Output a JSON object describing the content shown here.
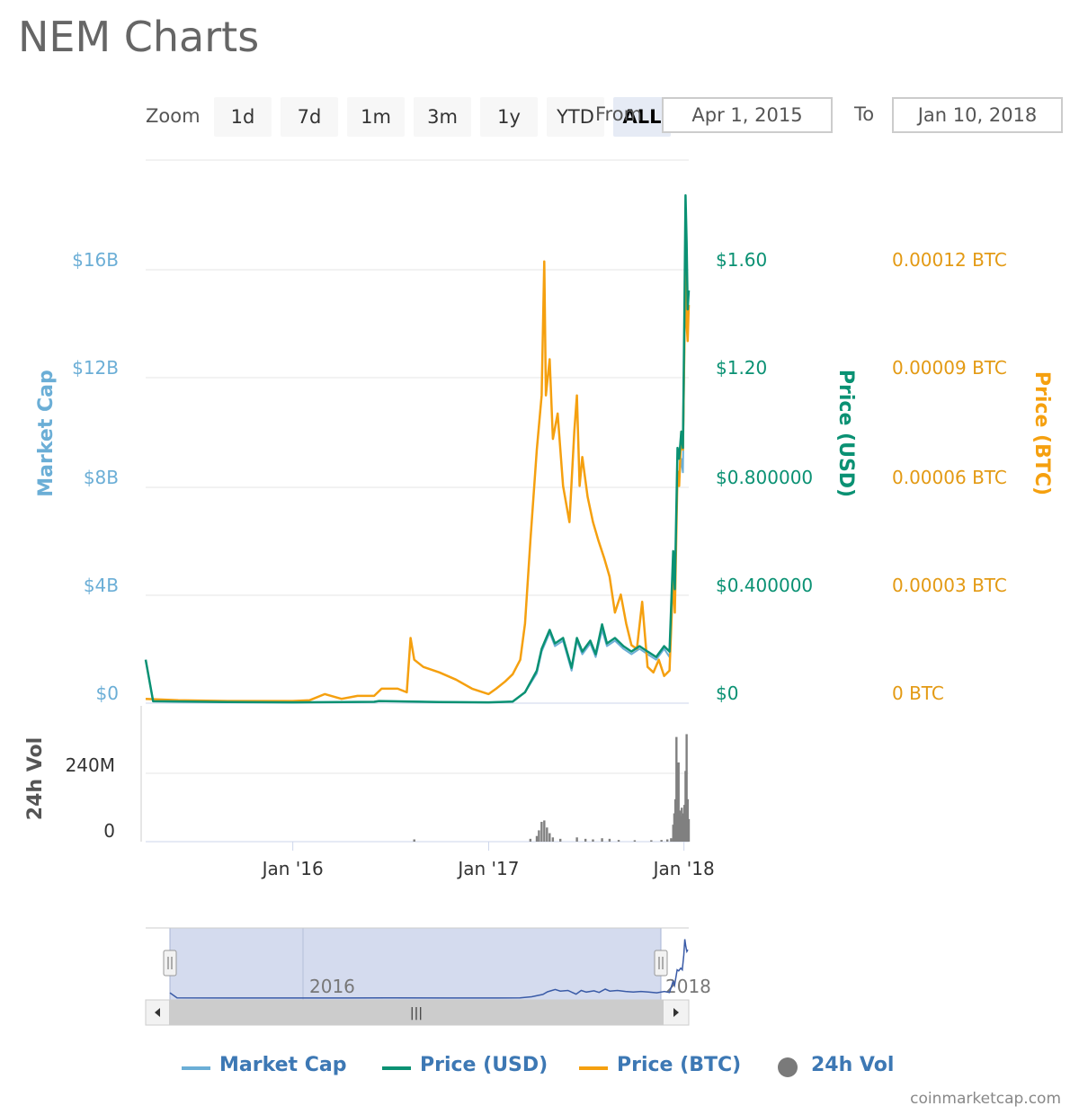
{
  "title": "NEM Charts",
  "zoom": {
    "label": "Zoom",
    "buttons": [
      "1d",
      "7d",
      "1m",
      "3m",
      "1y",
      "YTD",
      "ALL"
    ],
    "active": "ALL"
  },
  "range": {
    "from_label": "From",
    "from_value": "Apr 1, 2015",
    "to_label": "To",
    "to_value": "Jan 10, 2018"
  },
  "colors": {
    "market_cap": "#6baed6",
    "price_usd": "#0a9173",
    "price_btc": "#f5a00f",
    "volume": "#808080",
    "navigator_fill": "#d4dbee",
    "navigator_line": "#3a5ba7"
  },
  "chart_data": {
    "type": "line",
    "x_range": [
      "2015-04-01",
      "2018-01-10"
    ],
    "x_ticks": [
      "Jan '16",
      "Jan '17",
      "Jan '18"
    ],
    "y_axes": {
      "market_cap": {
        "title": "Market Cap",
        "ticks": [
          "$0",
          "$4B",
          "$8B",
          "$12B",
          "$16B"
        ],
        "range": [
          0,
          20000000000
        ]
      },
      "price_usd": {
        "title": "Price (USD)",
        "ticks": [
          "$0",
          "$0.400000",
          "$0.800000",
          "$1.20",
          "$1.60"
        ],
        "range": [
          0,
          2.0
        ]
      },
      "price_btc": {
        "title": "Price (BTC)",
        "ticks": [
          "0 BTC",
          "0.00003 BTC",
          "0.00006 BTC",
          "0.00009 BTC",
          "0.00012 BTC"
        ],
        "range": [
          0,
          0.00015
        ]
      },
      "volume": {
        "title": "24h Vol",
        "ticks": [
          "0",
          "240M"
        ],
        "range": [
          0,
          480000000
        ]
      }
    },
    "series": [
      {
        "name": "Market Cap",
        "points": [
          [
            "2015-04-01",
            1600000000
          ],
          [
            "2015-04-15",
            70000000
          ],
          [
            "2015-09-01",
            40000000
          ],
          [
            "2016-01-01",
            30000000
          ],
          [
            "2016-06-01",
            50000000
          ],
          [
            "2016-06-10",
            80000000
          ],
          [
            "2016-10-01",
            40000000
          ],
          [
            "2017-01-01",
            30000000
          ],
          [
            "2017-02-15",
            60000000
          ],
          [
            "2017-03-10",
            400000000
          ],
          [
            "2017-04-01",
            1100000000
          ],
          [
            "2017-04-10",
            1900000000
          ],
          [
            "2017-04-25",
            2600000000
          ],
          [
            "2017-05-05",
            2100000000
          ],
          [
            "2017-05-20",
            2300000000
          ],
          [
            "2017-06-05",
            1200000000
          ],
          [
            "2017-06-15",
            2300000000
          ],
          [
            "2017-06-25",
            1800000000
          ],
          [
            "2017-07-10",
            2200000000
          ],
          [
            "2017-07-20",
            1700000000
          ],
          [
            "2017-08-01",
            2700000000
          ],
          [
            "2017-08-10",
            2100000000
          ],
          [
            "2017-08-25",
            2300000000
          ],
          [
            "2017-09-10",
            2000000000
          ],
          [
            "2017-09-25",
            1800000000
          ],
          [
            "2017-10-10",
            2000000000
          ],
          [
            "2017-10-25",
            1800000000
          ],
          [
            "2017-11-10",
            1600000000
          ],
          [
            "2017-11-25",
            2000000000
          ],
          [
            "2017-12-05",
            1700000000
          ],
          [
            "2017-12-12",
            5000000000
          ],
          [
            "2017-12-15",
            3800000000
          ],
          [
            "2017-12-20",
            8500000000
          ],
          [
            "2017-12-23",
            8200000000
          ],
          [
            "2017-12-27",
            9000000000
          ],
          [
            "2017-12-30",
            8500000000
          ],
          [
            "2018-01-02",
            13000000000
          ],
          [
            "2018-01-04",
            17700000000
          ],
          [
            "2018-01-06",
            15600000000
          ],
          [
            "2018-01-08",
            14000000000
          ],
          [
            "2018-01-10",
            14500000000
          ]
        ]
      },
      {
        "name": "Price (USD)",
        "points": [
          [
            "2015-04-01",
            0.16
          ],
          [
            "2015-04-15",
            0.007
          ],
          [
            "2015-09-01",
            0.004
          ],
          [
            "2016-01-01",
            0.003
          ],
          [
            "2016-06-01",
            0.005
          ],
          [
            "2016-06-10",
            0.008
          ],
          [
            "2016-10-01",
            0.004
          ],
          [
            "2017-01-01",
            0.003
          ],
          [
            "2017-02-15",
            0.006
          ],
          [
            "2017-03-10",
            0.04
          ],
          [
            "2017-04-01",
            0.12
          ],
          [
            "2017-04-10",
            0.2
          ],
          [
            "2017-04-25",
            0.27
          ],
          [
            "2017-05-05",
            0.22
          ],
          [
            "2017-05-20",
            0.24
          ],
          [
            "2017-06-05",
            0.13
          ],
          [
            "2017-06-15",
            0.24
          ],
          [
            "2017-06-25",
            0.19
          ],
          [
            "2017-07-10",
            0.23
          ],
          [
            "2017-07-20",
            0.18
          ],
          [
            "2017-08-01",
            0.29
          ],
          [
            "2017-08-10",
            0.22
          ],
          [
            "2017-08-25",
            0.24
          ],
          [
            "2017-09-10",
            0.21
          ],
          [
            "2017-09-25",
            0.19
          ],
          [
            "2017-10-10",
            0.21
          ],
          [
            "2017-10-25",
            0.19
          ],
          [
            "2017-11-10",
            0.17
          ],
          [
            "2017-11-25",
            0.21
          ],
          [
            "2017-12-05",
            0.19
          ],
          [
            "2017-12-12",
            0.56
          ],
          [
            "2017-12-15",
            0.42
          ],
          [
            "2017-12-20",
            0.94
          ],
          [
            "2017-12-23",
            0.9
          ],
          [
            "2017-12-27",
            1.0
          ],
          [
            "2017-12-30",
            0.94
          ],
          [
            "2018-01-02",
            1.45
          ],
          [
            "2018-01-04",
            1.87
          ],
          [
            "2018-01-06",
            1.7
          ],
          [
            "2018-01-08",
            1.45
          ],
          [
            "2018-01-10",
            1.52
          ]
        ]
      },
      {
        "name": "Price (BTC)",
        "points": [
          [
            "2015-04-01",
            1.2e-06
          ],
          [
            "2015-06-01",
            8e-07
          ],
          [
            "2015-09-01",
            6e-07
          ],
          [
            "2016-01-01",
            6e-07
          ],
          [
            "2016-02-01",
            8e-07
          ],
          [
            "2016-03-01",
            2.5e-06
          ],
          [
            "2016-04-01",
            1.2e-06
          ],
          [
            "2016-05-01",
            2e-06
          ],
          [
            "2016-06-01",
            2e-06
          ],
          [
            "2016-06-15",
            4e-06
          ],
          [
            "2016-07-15",
            4e-06
          ],
          [
            "2016-08-01",
            3e-06
          ],
          [
            "2016-08-08",
            1.8e-05
          ],
          [
            "2016-08-15",
            1.2e-05
          ],
          [
            "2016-09-01",
            1e-05
          ],
          [
            "2016-10-01",
            8.5e-06
          ],
          [
            "2016-11-01",
            6.5e-06
          ],
          [
            "2016-12-01",
            4e-06
          ],
          [
            "2017-01-01",
            2.5e-06
          ],
          [
            "2017-01-15",
            4e-06
          ],
          [
            "2017-02-01",
            6e-06
          ],
          [
            "2017-02-15",
            8e-06
          ],
          [
            "2017-03-01",
            1.2e-05
          ],
          [
            "2017-03-10",
            2.2e-05
          ],
          [
            "2017-03-20",
            4.5e-05
          ],
          [
            "2017-04-01",
            7e-05
          ],
          [
            "2017-04-10",
            8.5e-05
          ],
          [
            "2017-04-15",
            0.000122
          ],
          [
            "2017-04-18",
            8.5e-05
          ],
          [
            "2017-04-25",
            9.5e-05
          ],
          [
            "2017-05-01",
            7.3e-05
          ],
          [
            "2017-05-10",
            8e-05
          ],
          [
            "2017-05-20",
            6e-05
          ],
          [
            "2017-06-01",
            5e-05
          ],
          [
            "2017-06-10",
            7.5e-05
          ],
          [
            "2017-06-15",
            8.5e-05
          ],
          [
            "2017-06-20",
            6e-05
          ],
          [
            "2017-06-25",
            6.8e-05
          ],
          [
            "2017-07-05",
            5.7e-05
          ],
          [
            "2017-07-15",
            5e-05
          ],
          [
            "2017-07-25",
            4.5e-05
          ],
          [
            "2017-08-05",
            4e-05
          ],
          [
            "2017-08-15",
            3.5e-05
          ],
          [
            "2017-08-25",
            2.5e-05
          ],
          [
            "2017-09-05",
            3e-05
          ],
          [
            "2017-09-15",
            2.2e-05
          ],
          [
            "2017-09-25",
            1.6e-05
          ],
          [
            "2017-10-05",
            1.5e-05
          ],
          [
            "2017-10-15",
            2.8e-05
          ],
          [
            "2017-10-25",
            1e-05
          ],
          [
            "2017-11-05",
            8.5e-06
          ],
          [
            "2017-11-15",
            1.2e-05
          ],
          [
            "2017-11-25",
            7.5e-06
          ],
          [
            "2017-12-05",
            9e-06
          ],
          [
            "2017-12-12",
            3.5e-05
          ],
          [
            "2017-12-15",
            2.5e-05
          ],
          [
            "2017-12-20",
            6.4e-05
          ],
          [
            "2017-12-23",
            6e-05
          ],
          [
            "2017-12-27",
            7.5e-05
          ],
          [
            "2017-12-30",
            7e-05
          ],
          [
            "2018-01-02",
            0.0001
          ],
          [
            "2018-01-04",
            0.000125
          ],
          [
            "2018-01-06",
            0.000105
          ],
          [
            "2018-01-08",
            0.0001
          ],
          [
            "2018-01-10",
            0.00011
          ]
        ]
      },
      {
        "name": "24h Vol",
        "type": "bar",
        "points": [
          [
            "2016-08-15",
            8000000
          ],
          [
            "2017-03-20",
            10000000
          ],
          [
            "2017-04-01",
            20000000
          ],
          [
            "2017-04-05",
            40000000
          ],
          [
            "2017-04-10",
            70000000
          ],
          [
            "2017-04-15",
            75000000
          ],
          [
            "2017-04-20",
            50000000
          ],
          [
            "2017-04-25",
            30000000
          ],
          [
            "2017-05-01",
            15000000
          ],
          [
            "2017-05-15",
            10000000
          ],
          [
            "2017-06-15",
            15000000
          ],
          [
            "2017-07-01",
            10000000
          ],
          [
            "2017-07-15",
            8000000
          ],
          [
            "2017-08-01",
            12000000
          ],
          [
            "2017-08-15",
            10000000
          ],
          [
            "2017-09-01",
            6000000
          ],
          [
            "2017-10-01",
            5000000
          ],
          [
            "2017-11-01",
            5000000
          ],
          [
            "2017-11-20",
            6000000
          ],
          [
            "2017-12-01",
            8000000
          ],
          [
            "2017-12-08",
            12000000
          ],
          [
            "2017-12-12",
            60000000
          ],
          [
            "2017-12-14",
            100000000
          ],
          [
            "2017-12-16",
            150000000
          ],
          [
            "2017-12-18",
            370000000
          ],
          [
            "2017-12-20",
            230000000
          ],
          [
            "2017-12-22",
            280000000
          ],
          [
            "2017-12-24",
            110000000
          ],
          [
            "2017-12-26",
            90000000
          ],
          [
            "2017-12-28",
            120000000
          ],
          [
            "2017-12-30",
            100000000
          ],
          [
            "2018-01-02",
            130000000
          ],
          [
            "2018-01-04",
            250000000
          ],
          [
            "2018-01-06",
            380000000
          ],
          [
            "2018-01-08",
            150000000
          ],
          [
            "2018-01-10",
            80000000
          ]
        ]
      }
    ],
    "navigator": {
      "x_labels": [
        "2016",
        "2018"
      ]
    }
  },
  "legend": [
    {
      "name": "Market Cap",
      "marker": "line"
    },
    {
      "name": "Price (USD)",
      "marker": "line"
    },
    {
      "name": "Price (BTC)",
      "marker": "line"
    },
    {
      "name": "24h Vol",
      "marker": "dot"
    }
  ],
  "credits": "coinmarketcap.com"
}
